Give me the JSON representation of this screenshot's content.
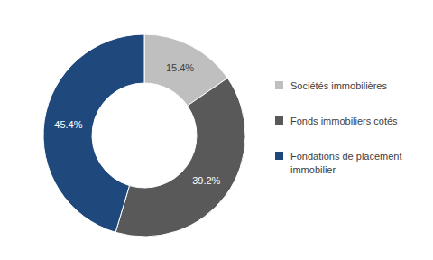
{
  "chart_data": {
    "type": "pie",
    "categories": [
      "Sociétés immobilières",
      "Fonds immobiliers cotés",
      "Fondations de placement immobilier"
    ],
    "values": [
      15.4,
      39.2,
      45.4
    ],
    "value_labels": [
      "15.4%",
      "39.2%",
      "45.4%"
    ],
    "colors": [
      "#bfbfbf",
      "#595959",
      "#1f497d"
    ],
    "data_labels": true,
    "legend": "right"
  }
}
